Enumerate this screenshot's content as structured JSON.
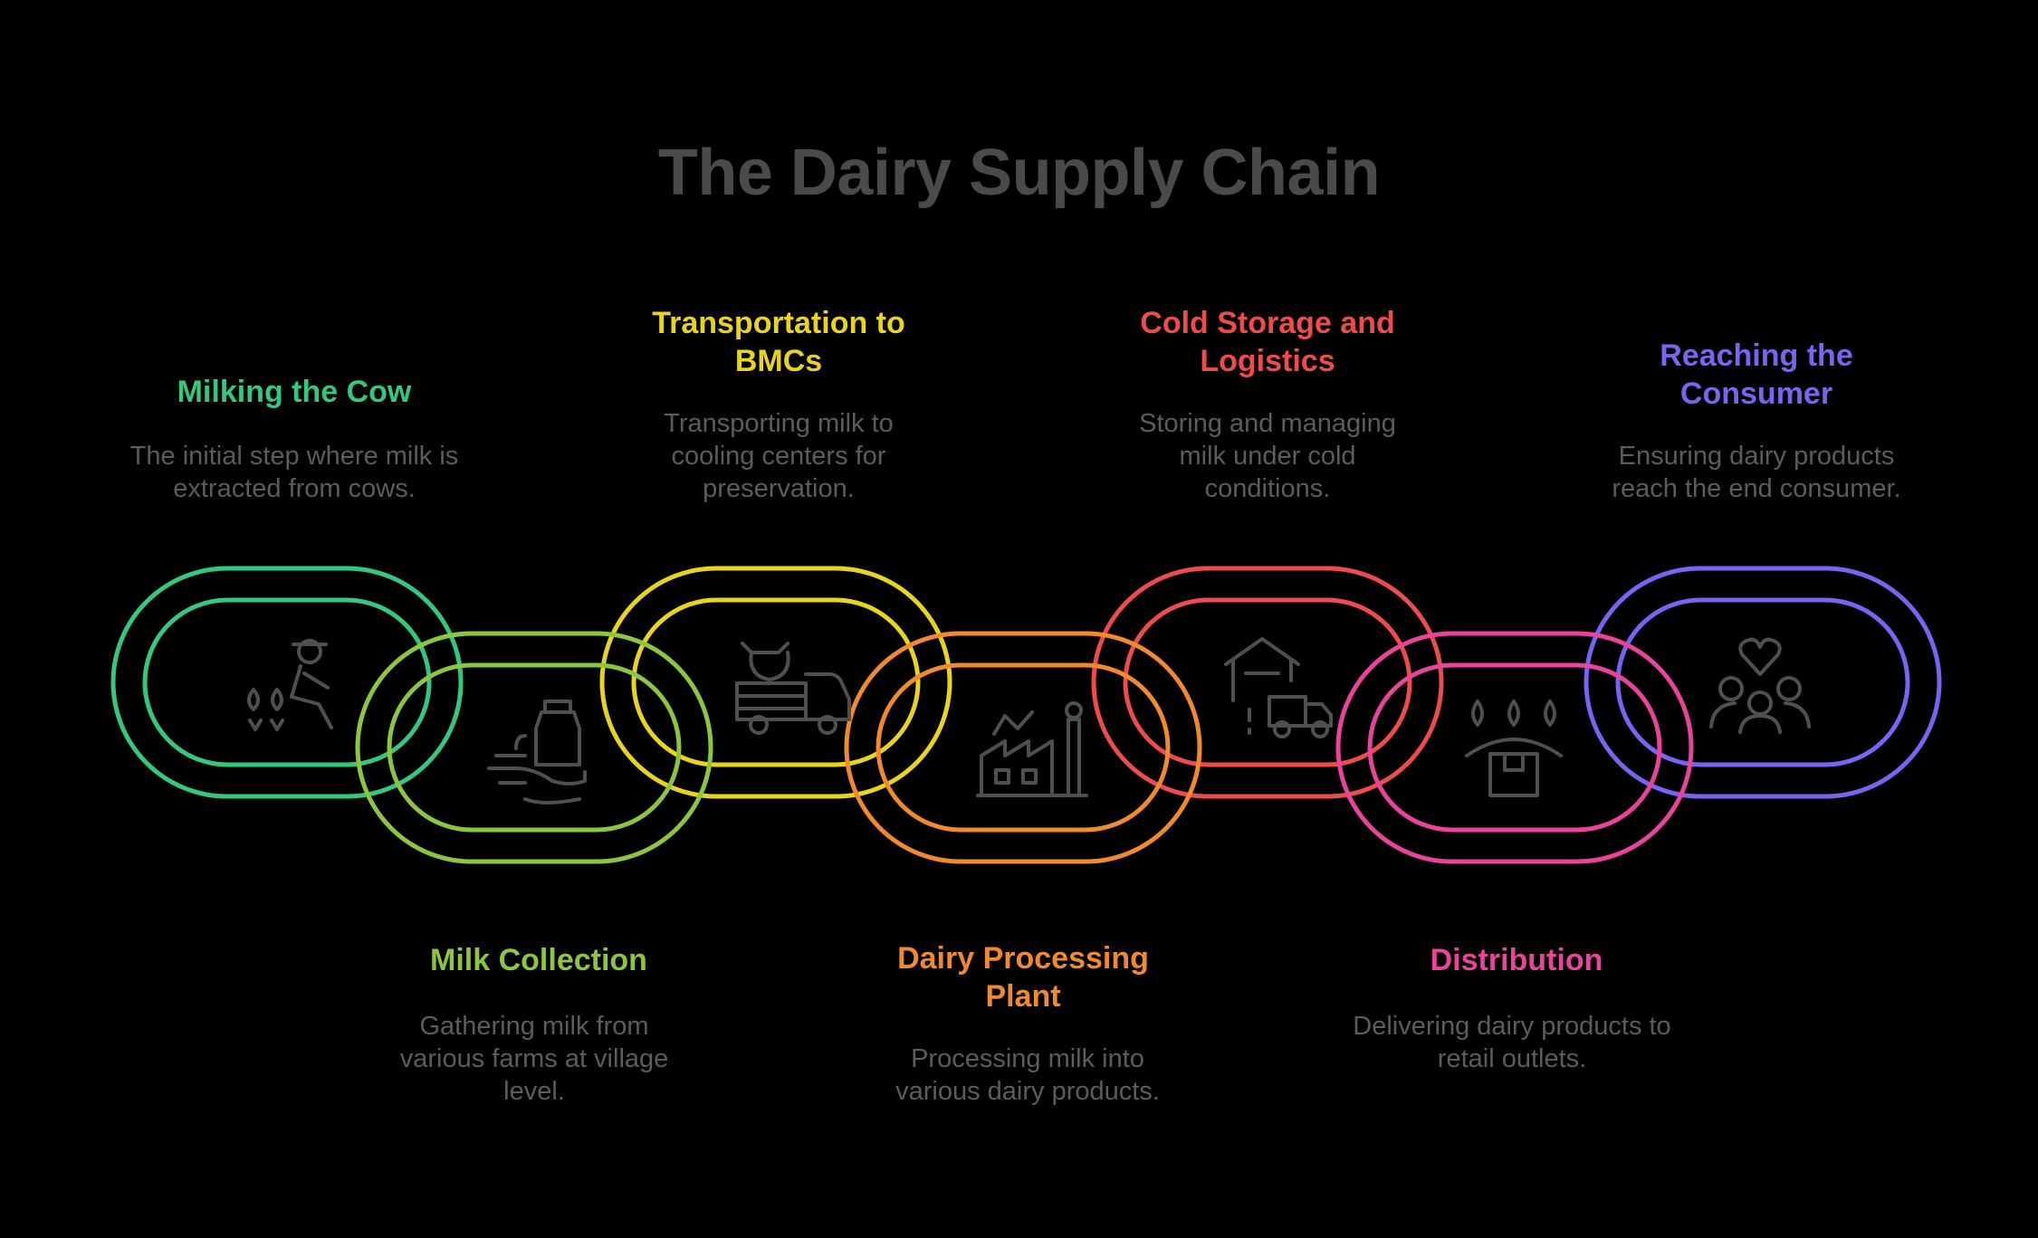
{
  "title": "The Dairy Supply Chain",
  "steps": [
    {
      "label": "Milking the Cow",
      "desc": "The initial step where milk is extracted from cows.",
      "color": "#34c77e",
      "icon": "farmer-milking-icon"
    },
    {
      "label": "Milk Collection",
      "desc": "Gathering milk from various farms at village level.",
      "color": "#8cc63f",
      "icon": "milk-can-icon"
    },
    {
      "label": "Transportation to BMCs",
      "desc": "Transporting milk to cooling centers for preservation.",
      "color": "#e8d41c",
      "icon": "cattle-truck-icon"
    },
    {
      "label": "Dairy Processing Plant",
      "desc": "Processing milk into various dairy products.",
      "color": "#f08a2c",
      "icon": "factory-icon"
    },
    {
      "label": "Cold Storage and Logistics",
      "desc": "Storing and managing milk under cold conditions.",
      "color": "#ee4b4b",
      "icon": "warehouse-truck-icon"
    },
    {
      "label": "Distribution",
      "desc": "Delivering dairy products to retail outlets.",
      "color": "#e7449a",
      "icon": "box-drops-icon"
    },
    {
      "label": "Reaching the Consumer",
      "desc": "Ensuring dairy products reach the end consumer.",
      "color": "#7a63f0",
      "icon": "people-heart-icon"
    }
  ]
}
